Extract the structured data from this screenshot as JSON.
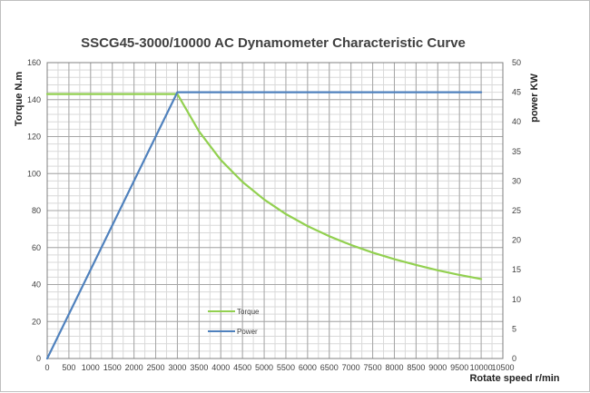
{
  "chart_data": {
    "type": "line",
    "title": "SSCG45-3000/10000  AC Dynamometer Characteristic Curve",
    "xlabel": "Rotate speed r/min",
    "ylabel": "Torque N.m",
    "y2label": "power KW",
    "xlim": [
      0,
      10500
    ],
    "ylim": [
      0,
      160
    ],
    "y2lim": [
      0,
      50
    ],
    "x_ticks": [
      "0",
      "500",
      "1000",
      "1500",
      "2000",
      "2500",
      "3000",
      "3500",
      "4000",
      "4500",
      "5000",
      "5500",
      "6000",
      "6500",
      "7000",
      "7500",
      "8000",
      "8500",
      "9000",
      "9500",
      "10000",
      "10500"
    ],
    "y_ticks": [
      "0",
      "20",
      "40",
      "60",
      "80",
      "100",
      "120",
      "140",
      "160"
    ],
    "y2_ticks": [
      "0",
      "5",
      "10",
      "15",
      "20",
      "25",
      "30",
      "35",
      "40",
      "45",
      "50"
    ],
    "grid": true,
    "legend_position": "lower-left inside plot",
    "series": [
      {
        "name": "Torque",
        "axis": "left",
        "color": "#92d050",
        "x": [
          0,
          3000,
          3500,
          4000,
          4500,
          5000,
          5500,
          6000,
          6500,
          7000,
          7500,
          8000,
          8500,
          9000,
          9500,
          10000
        ],
        "y": [
          143,
          143,
          122.8,
          107.4,
          95.5,
          86.0,
          78.1,
          71.6,
          66.1,
          61.4,
          57.3,
          53.7,
          50.6,
          47.7,
          45.2,
          43.0
        ]
      },
      {
        "name": "Power",
        "axis": "right",
        "color": "#4f81bd",
        "x": [
          0,
          3000,
          10000
        ],
        "y": [
          0,
          45,
          45
        ]
      }
    ]
  }
}
